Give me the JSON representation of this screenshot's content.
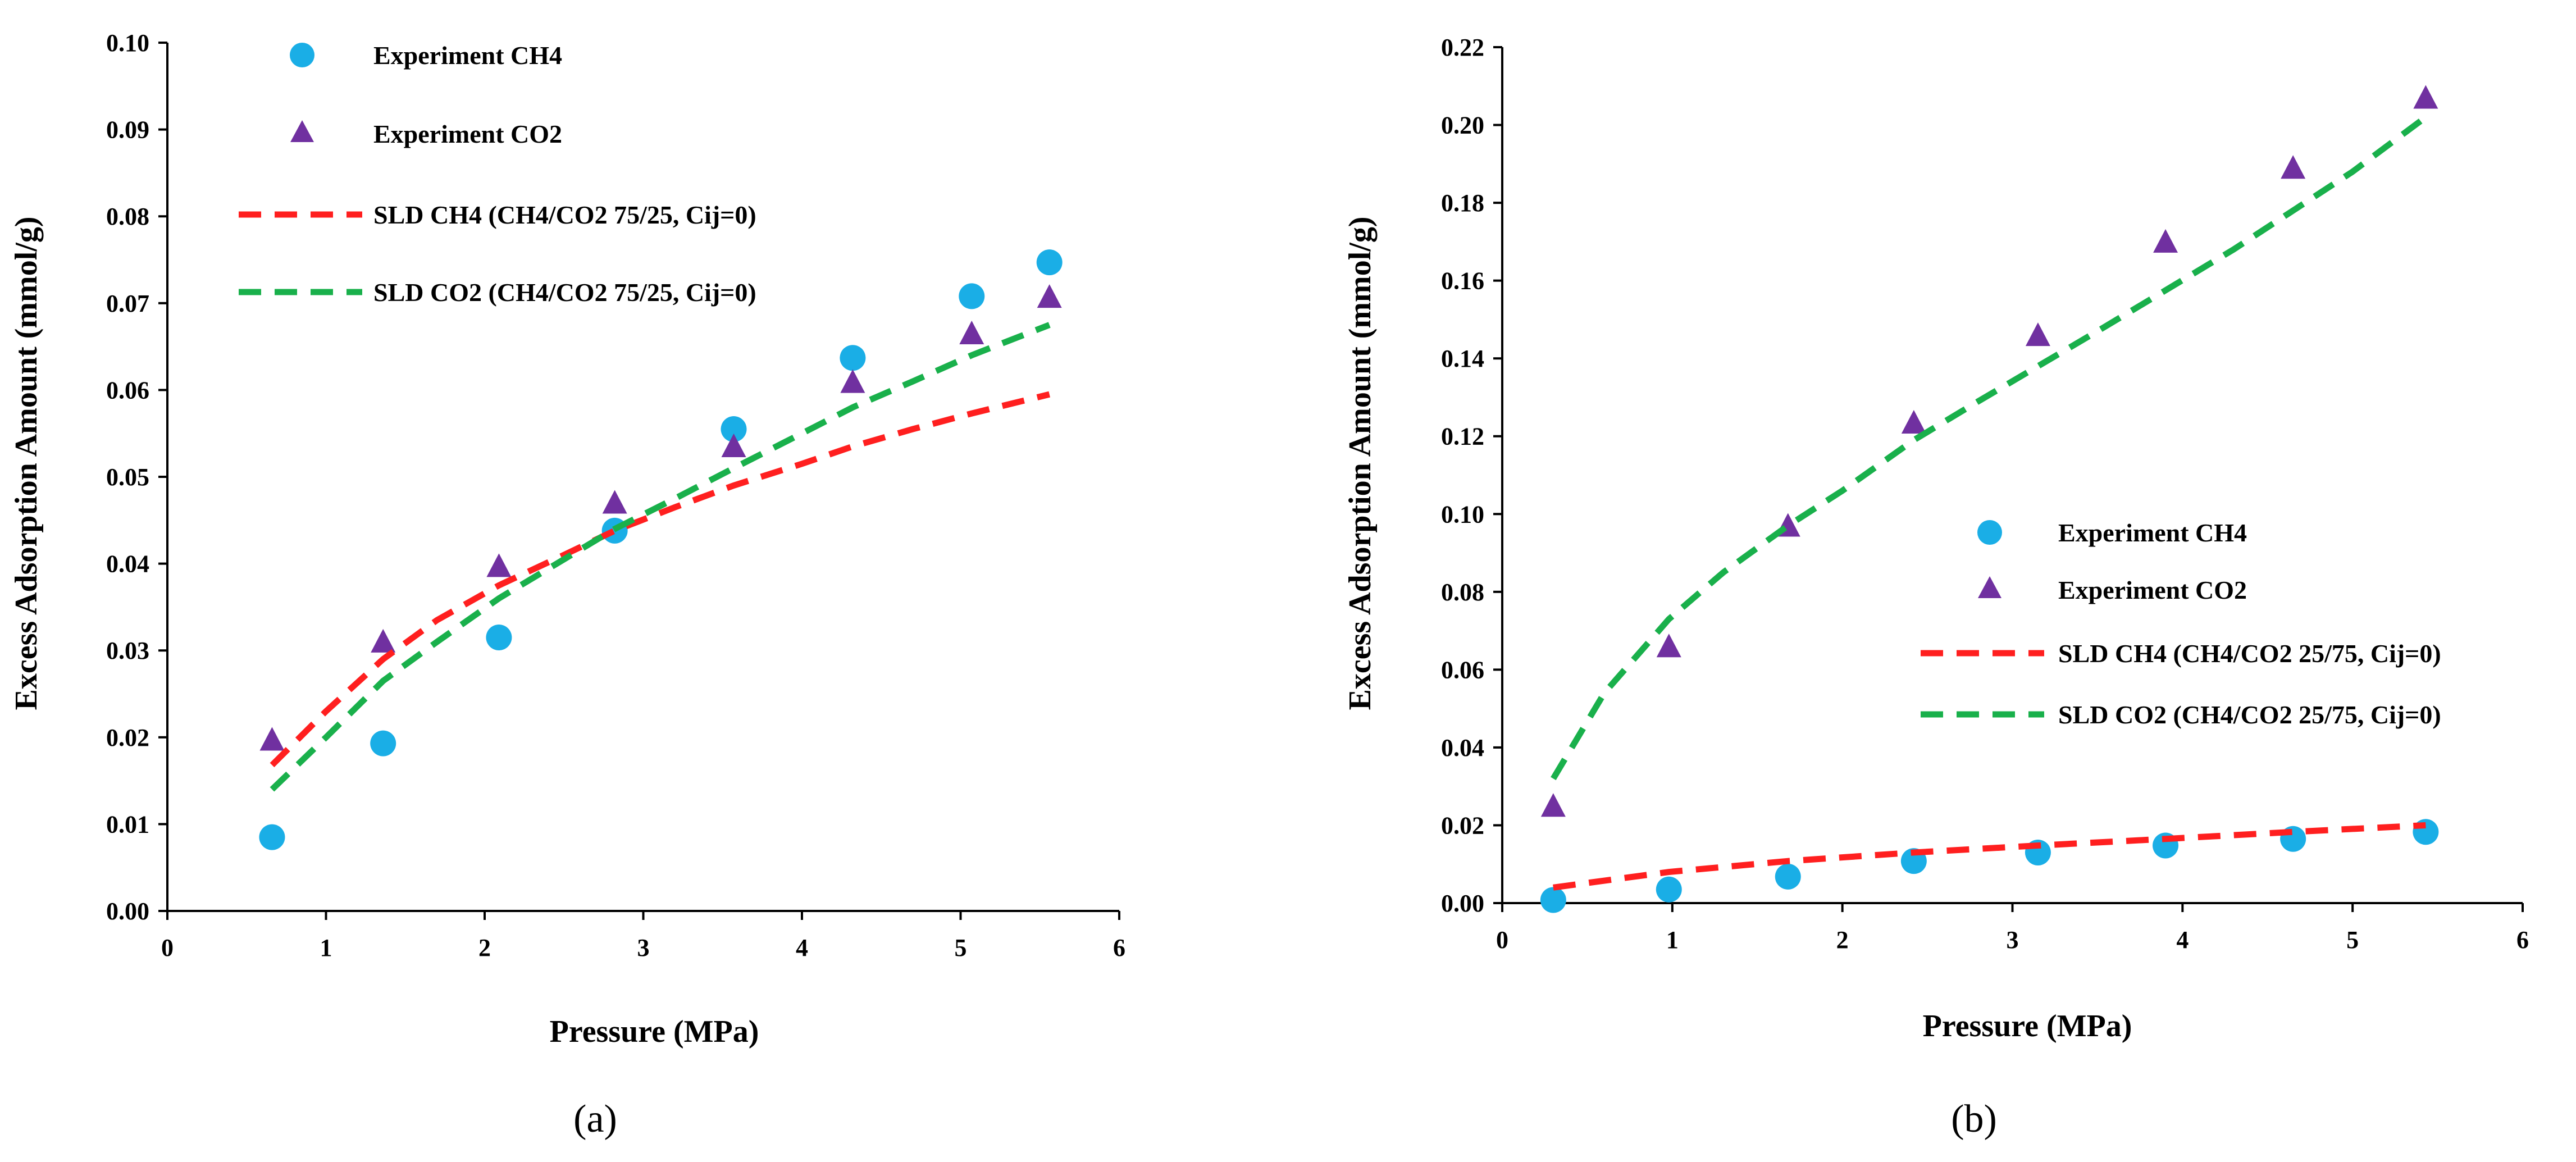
{
  "colors": {
    "ch4_marker": "#1aaee6",
    "co2_marker": "#7030a0",
    "ch4_line": "#ff1f1f",
    "co2_line": "#19b04b",
    "axis": "#000000"
  },
  "chart_data": [
    {
      "type": "scatter",
      "panel_label": "(a)",
      "xlabel": "Pressure (MPa)",
      "ylabel": "Excess Adsorption Amount (mmol/g)",
      "xlim": [
        0,
        6
      ],
      "ylim": [
        0,
        0.1
      ],
      "xticks": [
        "0",
        "1",
        "2",
        "3",
        "4",
        "5",
        "6"
      ],
      "yticks": [
        "0.00",
        "0.01",
        "0.02",
        "0.03",
        "0.04",
        "0.05",
        "0.06",
        "0.07",
        "0.08",
        "0.09",
        "0.10"
      ],
      "legend_position": "top-left",
      "series": [
        {
          "name": "Experiment CH4",
          "kind": "marker-circle",
          "color": "#1aaee6",
          "x": [
            0.66,
            1.36,
            2.09,
            2.82,
            3.57,
            4.32,
            5.07,
            5.56
          ],
          "y": [
            0.0085,
            0.0193,
            0.0315,
            0.0438,
            0.0555,
            0.0637,
            0.0708,
            0.0747
          ]
        },
        {
          "name": "Experiment CO2",
          "kind": "marker-triangle",
          "color": "#7030a0",
          "x": [
            0.66,
            1.36,
            2.09,
            2.82,
            3.57,
            4.32,
            5.07,
            5.56
          ],
          "y": [
            0.0195,
            0.0308,
            0.0395,
            0.0468,
            0.0533,
            0.0607,
            0.0663,
            0.0705
          ]
        },
        {
          "name": "SLD CH4 (CH4/CO2 75/25, Cij=0)",
          "kind": "dashed-line",
          "color": "#ff1f1f",
          "x": [
            0.66,
            1.0,
            1.36,
            1.7,
            2.09,
            2.5,
            2.82,
            3.2,
            3.57,
            4.0,
            4.32,
            4.7,
            5.07,
            5.56
          ],
          "y": [
            0.0168,
            0.023,
            0.029,
            0.0335,
            0.0375,
            0.041,
            0.0438,
            0.0465,
            0.049,
            0.0515,
            0.0535,
            0.0555,
            0.0573,
            0.0595
          ]
        },
        {
          "name": "SLD CO2 (CH4/CO2 75/25, Cij=0)",
          "kind": "dashed-line",
          "color": "#19b04b",
          "x": [
            0.66,
            1.0,
            1.36,
            1.7,
            2.09,
            2.5,
            2.82,
            3.2,
            3.57,
            4.0,
            4.32,
            4.7,
            5.07,
            5.56
          ],
          "y": [
            0.014,
            0.02,
            0.0265,
            0.031,
            0.036,
            0.0405,
            0.044,
            0.0475,
            0.051,
            0.055,
            0.058,
            0.061,
            0.064,
            0.0675
          ]
        }
      ]
    },
    {
      "type": "scatter",
      "panel_label": "(b)",
      "xlabel": "Pressure (MPa)",
      "ylabel": "Excess Adsorption Amount (mmol/g)",
      "xlim": [
        0,
        6
      ],
      "ylim": [
        0,
        0.22
      ],
      "xticks": [
        "0",
        "1",
        "2",
        "3",
        "4",
        "5",
        "6"
      ],
      "yticks": [
        "0.00",
        "0.02",
        "0.04",
        "0.06",
        "0.08",
        "0.10",
        "0.12",
        "0.14",
        "0.16",
        "0.18",
        "0.20",
        "0.22"
      ],
      "legend_position": "center-right",
      "series": [
        {
          "name": "Experiment CH4",
          "kind": "marker-circle",
          "color": "#1aaee6",
          "x": [
            0.3,
            0.98,
            1.68,
            2.42,
            3.15,
            3.9,
            4.65,
            5.43
          ],
          "y": [
            0.0008,
            0.0035,
            0.0068,
            0.0108,
            0.013,
            0.0148,
            0.0165,
            0.0183
          ]
        },
        {
          "name": "Experiment CO2",
          "kind": "marker-triangle",
          "color": "#7030a0",
          "x": [
            0.3,
            0.98,
            1.68,
            2.42,
            3.15,
            3.9,
            4.65,
            5.43
          ],
          "y": [
            0.0245,
            0.0655,
            0.0965,
            0.123,
            0.1455,
            0.1695,
            0.1885,
            0.2065
          ]
        },
        {
          "name": "SLD CH4 (CH4/CO2 25/75, Cij=0)",
          "kind": "dashed-line",
          "color": "#ff1f1f",
          "x": [
            0.3,
            0.98,
            1.68,
            2.42,
            3.15,
            3.9,
            4.65,
            5.43
          ],
          "y": [
            0.004,
            0.008,
            0.0108,
            0.013,
            0.0148,
            0.0165,
            0.0183,
            0.02
          ]
        },
        {
          "name": "SLD CO2 (CH4/CO2 25/75, Cij=0)",
          "kind": "dashed-line",
          "color": "#19b04b",
          "x": [
            0.3,
            0.6,
            0.98,
            1.3,
            1.68,
            2.0,
            2.42,
            2.8,
            3.15,
            3.5,
            3.9,
            4.3,
            4.65,
            5.0,
            5.43
          ],
          "y": [
            0.032,
            0.054,
            0.073,
            0.085,
            0.097,
            0.106,
            0.119,
            0.129,
            0.138,
            0.147,
            0.1575,
            0.168,
            0.178,
            0.188,
            0.202
          ]
        }
      ]
    }
  ]
}
